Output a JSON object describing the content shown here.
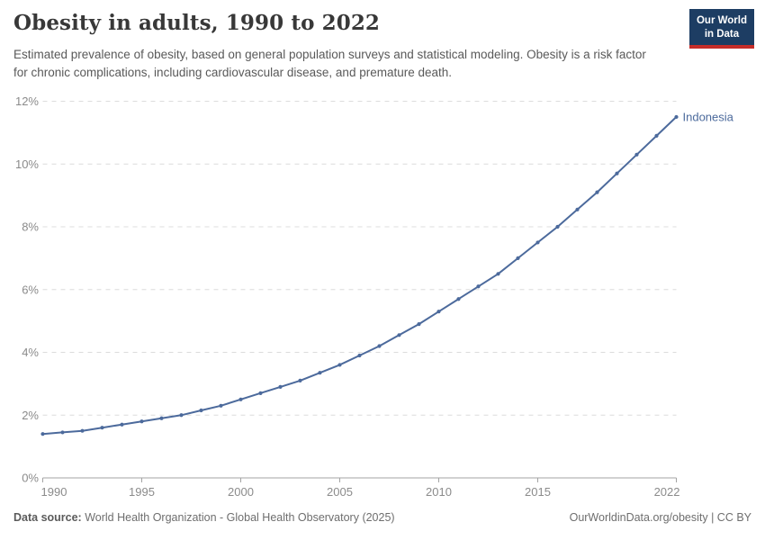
{
  "header": {
    "title": "Obesity in adults, 1990 to 2022",
    "subtitle": "Estimated prevalence of obesity, based on general population surveys and statistical modeling. Obesity is a risk factor for chronic complications, including cardiovascular disease, and premature death.",
    "logo": {
      "line1": "Our World",
      "line2": "in Data"
    }
  },
  "chart_data": {
    "type": "line",
    "title": "Obesity in adults, 1990 to 2022",
    "xlabel": "",
    "ylabel": "",
    "xlim": [
      1990,
      2022
    ],
    "ylim": [
      0,
      12
    ],
    "grid": "horizontal-dashed",
    "legend_position": "end-of-line-label",
    "x_ticks": [
      1990,
      1995,
      2000,
      2005,
      2010,
      2015,
      2022
    ],
    "y_ticks": [
      {
        "value": 0,
        "label": "0%"
      },
      {
        "value": 2,
        "label": "2%"
      },
      {
        "value": 4,
        "label": "4%"
      },
      {
        "value": 6,
        "label": "6%"
      },
      {
        "value": 8,
        "label": "8%"
      },
      {
        "value": 10,
        "label": "10%"
      },
      {
        "value": 12,
        "label": "12%"
      }
    ],
    "series": [
      {
        "name": "Indonesia",
        "color": "#4c6a9c",
        "x": [
          1990,
          1991,
          1992,
          1993,
          1994,
          1995,
          1996,
          1997,
          1998,
          1999,
          2000,
          2001,
          2002,
          2003,
          2004,
          2005,
          2006,
          2007,
          2008,
          2009,
          2010,
          2011,
          2012,
          2013,
          2014,
          2015,
          2016,
          2017,
          2018,
          2019,
          2020,
          2021,
          2022
        ],
        "values": [
          1.4,
          1.45,
          1.5,
          1.6,
          1.7,
          1.8,
          1.9,
          2.0,
          2.15,
          2.3,
          2.5,
          2.7,
          2.9,
          3.1,
          3.35,
          3.6,
          3.9,
          4.2,
          4.55,
          4.9,
          5.3,
          5.7,
          6.1,
          6.5,
          7.0,
          7.5,
          8.0,
          8.55,
          9.1,
          9.7,
          10.3,
          10.9,
          11.5
        ]
      }
    ]
  },
  "footer": {
    "datasource_prefix": "Data source:",
    "datasource": " World Health Organization - Global Health Observatory (2025)",
    "credit": "OurWorldinData.org/obesity | CC BY"
  },
  "colors": {
    "line": "#4c6a9c",
    "gridline": "#dcdcdc",
    "axis_line": "#a3a3a3",
    "tick_label": "#8b8b8b",
    "logo_bg": "#1d3d63",
    "logo_accent": "#c62d29"
  }
}
